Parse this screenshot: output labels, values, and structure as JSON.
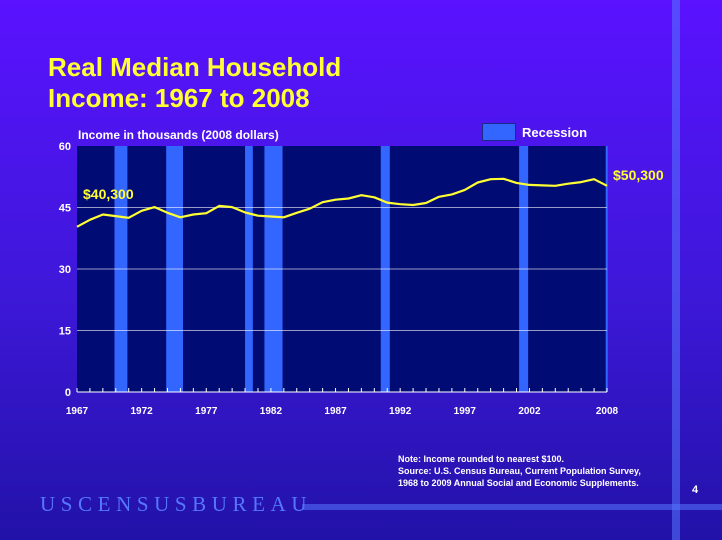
{
  "slide": {
    "title_line1": "Real Median Household",
    "title_line2": "Income:  1967 to 2008",
    "page_number": "4",
    "logo": "USCENSUSBUREAU",
    "note_line1": "Note:  Income rounded to nearest $100.",
    "note_line2": "Source:  U.S. Census Bureau, Current Population Survey,",
    "note_line3": "1968 to 2009 Annual Social and Economic Supplements."
  },
  "colors": {
    "plot_bg": "#000b73",
    "line": "#ffff33",
    "recession": "#3366ff",
    "grid": "#ffffff"
  },
  "chart_data": {
    "type": "line",
    "ylabel": "Income in thousands (2008 dollars)",
    "ylim": [
      0,
      60
    ],
    "yticks": [
      0,
      15,
      30,
      45,
      60
    ],
    "xlim": [
      1967,
      2008
    ],
    "xtick_labels": [
      1967,
      1972,
      1977,
      1982,
      1987,
      1992,
      1997,
      2002,
      2008
    ],
    "grid": true,
    "legend": {
      "label": "Recession",
      "placement": "top-right"
    },
    "annotations": {
      "start": "$40,300",
      "end": "$50,300"
    },
    "recessions": [
      [
        1969.9,
        1970.9
      ],
      [
        1973.9,
        1975.2
      ],
      [
        1980.0,
        1980.6
      ],
      [
        1981.5,
        1982.9
      ],
      [
        1990.5,
        1991.2
      ],
      [
        2001.2,
        2001.9
      ],
      [
        2007.9,
        2008.4
      ]
    ],
    "series": [
      {
        "x": [
          1967,
          1968,
          1969,
          1970,
          1971,
          1972,
          1973,
          1974,
          1975,
          1976,
          1977,
          1978,
          1979,
          1980,
          1981,
          1982,
          1983,
          1984,
          1985,
          1986,
          1987,
          1988,
          1989,
          1990,
          1991,
          1992,
          1993,
          1994,
          1995,
          1996,
          1997,
          1998,
          1999,
          2000,
          2001,
          2002,
          2003,
          2004,
          2005,
          2006,
          2007,
          2008
        ],
        "values": [
          40.3,
          42.0,
          43.3,
          42.9,
          42.5,
          44.2,
          45.1,
          43.7,
          42.6,
          43.3,
          43.6,
          45.4,
          45.1,
          43.8,
          43.0,
          42.8,
          42.6,
          43.7,
          44.7,
          46.3,
          46.9,
          47.2,
          48.0,
          47.5,
          46.2,
          45.8,
          45.6,
          46.1,
          47.6,
          48.2,
          49.3,
          51.1,
          51.9,
          52.0,
          51.0,
          50.5,
          50.4,
          50.3,
          50.8,
          51.2,
          51.9,
          50.3
        ]
      }
    ]
  }
}
